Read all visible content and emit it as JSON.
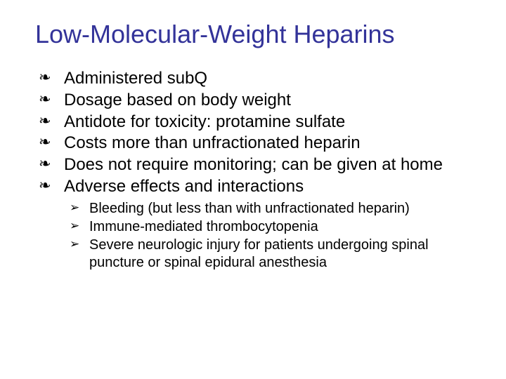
{
  "slide": {
    "title": "Low-Molecular-Weight Heparins",
    "title_color": "#333399",
    "title_fontsize": 36,
    "background_color": "#ffffff",
    "main_bullet_glyph": "❧",
    "sub_bullet_glyph": "➢",
    "main_items": [
      "Administered subQ",
      "Dosage based on body weight",
      "Antidote for toxicity: protamine sulfate",
      "Costs more than unfractionated heparin",
      "Does not require monitoring; can be given at home",
      "Adverse effects and interactions"
    ],
    "sub_items": [
      "Bleeding (but less than with unfractionated heparin)",
      "Immune-mediated thrombocytopenia",
      "Severe neurologic injury for patients undergoing spinal puncture or spinal epidural anesthesia"
    ],
    "main_fontsize": 24,
    "sub_fontsize": 20,
    "text_color": "#000000"
  }
}
